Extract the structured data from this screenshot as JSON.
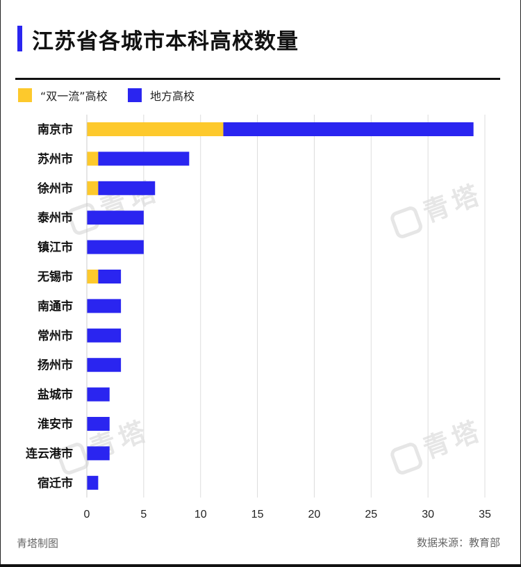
{
  "title": "江苏省各城市本科高校数量",
  "legend": [
    {
      "label": "“双一流”高校",
      "color": "#fdc92c"
    },
    {
      "label": "地方高校",
      "color": "#2a25f0"
    }
  ],
  "footer": {
    "left": "青塔制图",
    "right": "数据来源：教育部"
  },
  "watermark": "青塔",
  "chart_data": {
    "type": "bar",
    "orientation": "horizontal",
    "stacked": true,
    "title": "江苏省各城市本科高校数量",
    "categories": [
      "南京市",
      "苏州市",
      "徐州市",
      "泰州市",
      "镇江市",
      "无锡市",
      "南通市",
      "常州市",
      "扬州市",
      "盐城市",
      "淮安市",
      "连云港市",
      "宿迁市"
    ],
    "series": [
      {
        "name": "“双一流”高校",
        "color": "#fdc92c",
        "values": [
          12,
          1,
          1,
          0,
          0,
          1,
          0,
          0,
          0,
          0,
          0,
          0,
          0
        ]
      },
      {
        "name": "地方高校",
        "color": "#2a25f0",
        "values": [
          22,
          8,
          5,
          5,
          5,
          2,
          3,
          3,
          3,
          2,
          2,
          2,
          1
        ]
      }
    ],
    "xlim": [
      0,
      35
    ],
    "xticks": [
      0,
      5,
      10,
      15,
      20,
      25,
      30,
      35
    ],
    "grid": true,
    "legend_position": "top-left"
  }
}
